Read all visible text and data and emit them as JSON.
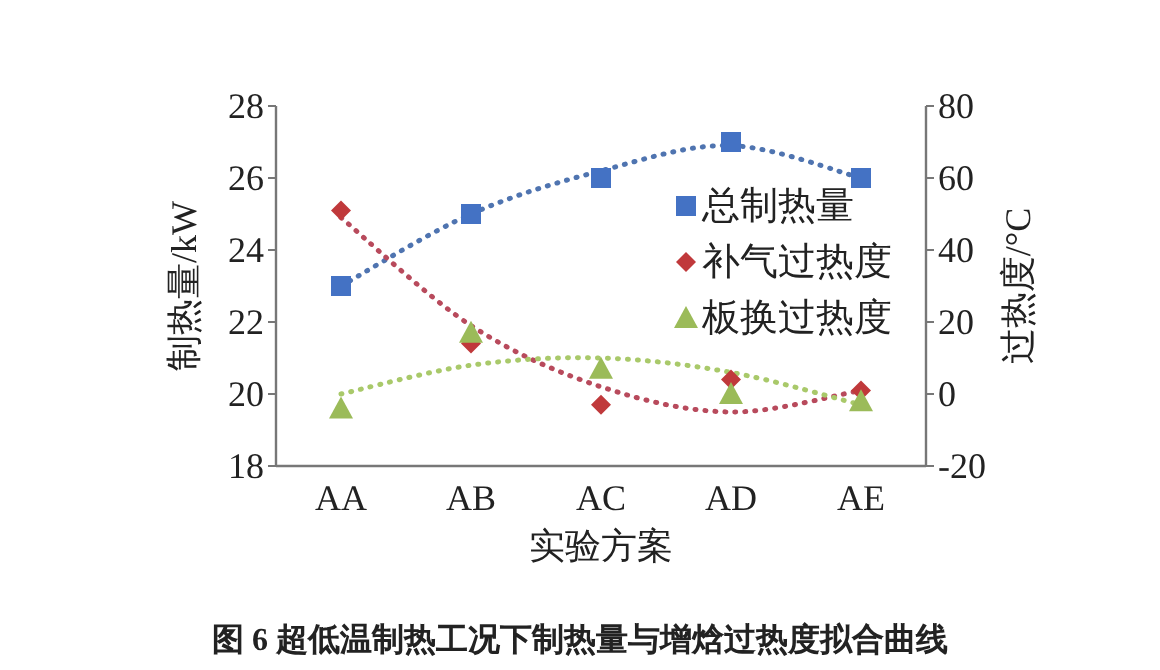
{
  "chart_data": {
    "type": "scatter",
    "xlabel": "实验方案",
    "ylabel": "制热量/kW",
    "y2label": "过热度/°C",
    "categories": [
      "AA",
      "AB",
      "AC",
      "AD",
      "AE"
    ],
    "ylim": [
      18,
      28
    ],
    "yticks": [
      18,
      20,
      22,
      24,
      26,
      28
    ],
    "y2lim": [
      -20,
      80
    ],
    "y2ticks": [
      -20,
      0,
      20,
      40,
      60,
      80
    ],
    "grid": false,
    "legend": "right",
    "annotations": [
      "图 6 超低温制热工况下制热量与增焓过热度拟合曲线"
    ],
    "series": [
      {
        "name": "总制热量",
        "color": "#4472c4",
        "marker": "square",
        "values": [
          23,
          25,
          26,
          27,
          26
        ]
      },
      {
        "name": "补气过热度",
        "color": "#c0393b",
        "marker": "diamond",
        "axis": "y2",
        "values": [
          51,
          14,
          -3,
          4,
          1
        ]
      },
      {
        "name": "板换过热度",
        "color": "#9bbb59",
        "marker": "triangle",
        "axis": "y2",
        "values": [
          -4,
          17,
          7,
          0,
          -2
        ]
      },
      {
        "type": "line",
        "color": "#4f74b0",
        "line_style": "dotted",
        "marker": "none",
        "values": [
          23,
          25,
          26.2,
          26.9,
          26
        ]
      },
      {
        "type": "line",
        "color": "#b84a5c",
        "line_style": "dotted",
        "marker": "none",
        "axis": "y2",
        "values": [
          49,
          19,
          2,
          -5,
          1
        ]
      },
      {
        "type": "line",
        "color": "#a9c96a",
        "line_style": "dotted",
        "marker": "none",
        "axis": "y2",
        "values": [
          0,
          8,
          10,
          6,
          -3
        ]
      }
    ]
  }
}
